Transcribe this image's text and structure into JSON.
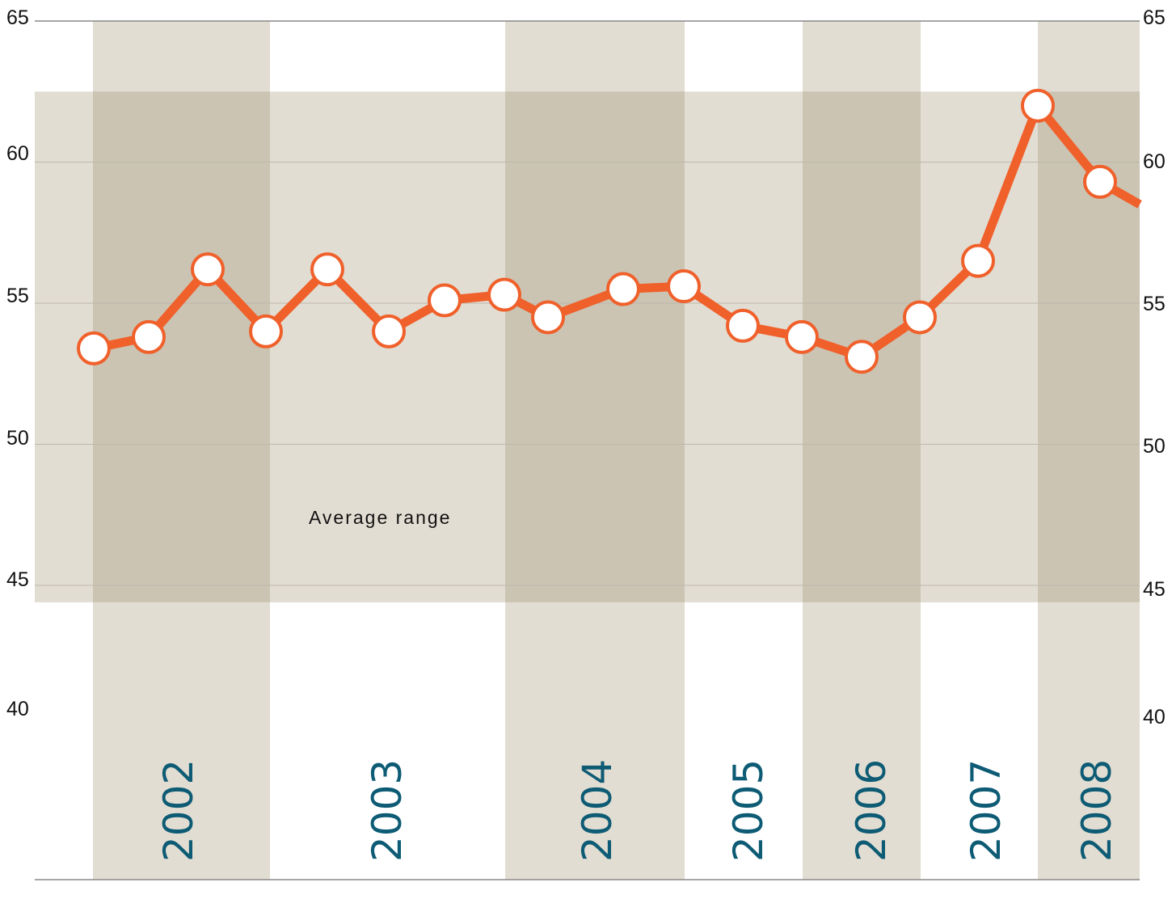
{
  "chart_data": {
    "type": "line",
    "y_ticks": [
      "65",
      "60",
      "55",
      "50",
      "45",
      "40"
    ],
    "year_labels": [
      "2002",
      "2003",
      "2004",
      "2005",
      "2006",
      "2007",
      "2008"
    ],
    "annotation": "Average range",
    "average_range": [
      44.4,
      62.5
    ],
    "ylim": [
      37.5,
      65
    ],
    "grid": true,
    "series": [
      {
        "values": [
          53.4,
          53.8,
          56.2,
          54.0,
          56.2,
          54.0,
          55.1,
          55.3,
          54.5,
          55.5,
          55.6,
          54.2,
          53.8,
          53.1,
          54.5,
          56.5,
          62.0,
          59.3,
          58.5
        ]
      }
    ],
    "colors": {
      "line": "#f0602b",
      "marker_fill": "#ffffff",
      "range_band": "#e2ddd2",
      "year_band": "#e2ddd2",
      "overlap": "#cbc4b2",
      "grid": "#bdb8ad",
      "year_text": "#0d5b74",
      "axis": "#888888"
    },
    "icons": {
      "marker": "open-circle-marker"
    }
  }
}
